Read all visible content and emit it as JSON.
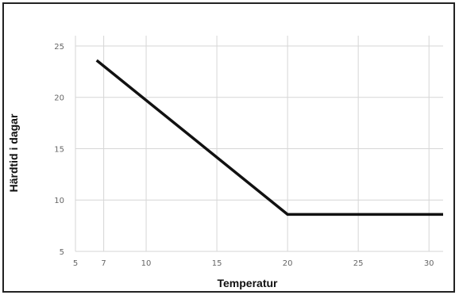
{
  "chart_data": {
    "type": "line",
    "title": "",
    "xlabel": "Temperatur",
    "ylabel": "Härdtid i dagar",
    "xlim": [
      5,
      31
    ],
    "ylim": [
      5,
      26
    ],
    "x_ticks": [
      5,
      7,
      10,
      15,
      20,
      25,
      30
    ],
    "y_ticks": [
      5,
      10,
      15,
      20,
      25
    ],
    "grid": true,
    "legend": "none",
    "series": [
      {
        "x": [
          6.5,
          20,
          31
        ],
        "y": [
          23.6,
          8.6,
          8.6
        ],
        "color": "#111111"
      }
    ]
  }
}
